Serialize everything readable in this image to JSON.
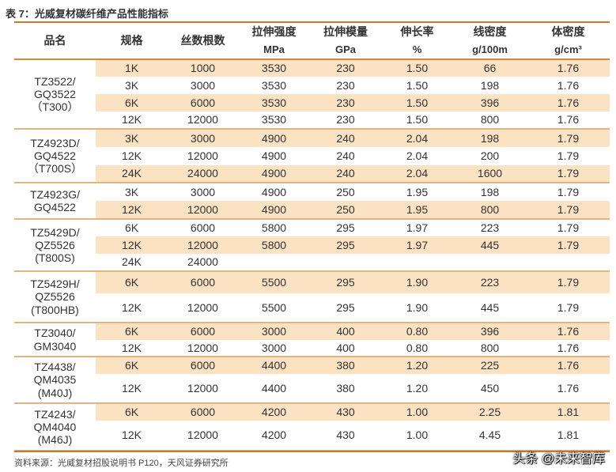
{
  "title": "表 7：光威复材碳纤维产品性能指标",
  "headers": {
    "name": "品名",
    "spec": "规格",
    "filaments": "丝数根数",
    "tensile_strength": "拉伸强度",
    "tensile_modulus": "拉伸模量",
    "elongation": "伸长率",
    "linear_density": "线密度",
    "density": "体密度"
  },
  "units": {
    "tensile_strength": "MPa",
    "tensile_modulus": "GPa",
    "elongation": "%",
    "linear_density": "g/100m",
    "density": "g/cm³"
  },
  "groups": [
    {
      "name": "TZ3522/\nGQ3522\n（T300）",
      "rows": [
        {
          "spec": "1K",
          "filaments": "1000",
          "strength": "3530",
          "modulus": "230",
          "elong": "1.50",
          "lin": "66",
          "dens": "1.76",
          "shade": true
        },
        {
          "spec": "3K",
          "filaments": "3000",
          "strength": "3530",
          "modulus": "230",
          "elong": "1.50",
          "lin": "198",
          "dens": "1.76",
          "shade": false
        },
        {
          "spec": "6K",
          "filaments": "6000",
          "strength": "3530",
          "modulus": "230",
          "elong": "1.50",
          "lin": "396",
          "dens": "1.76",
          "shade": true
        },
        {
          "spec": "12K",
          "filaments": "12000",
          "strength": "3530",
          "modulus": "230",
          "elong": "1.50",
          "lin": "800",
          "dens": "1.76",
          "shade": false
        }
      ]
    },
    {
      "name": "TZ4923D/\nGQ4522\n（T700S）",
      "rows": [
        {
          "spec": "3K",
          "filaments": "3000",
          "strength": "4900",
          "modulus": "240",
          "elong": "2.04",
          "lin": "198",
          "dens": "1.79",
          "shade": true
        },
        {
          "spec": "12K",
          "filaments": "12000",
          "strength": "4900",
          "modulus": "240",
          "elong": "2.04",
          "lin": "200",
          "dens": "1.79",
          "shade": false
        },
        {
          "spec": "24K",
          "filaments": "24000",
          "strength": "4900",
          "modulus": "240",
          "elong": "2.04",
          "lin": "1600",
          "dens": "1.79",
          "shade": true
        }
      ]
    },
    {
      "name": "TZ4923G/\nGQ4522",
      "rows": [
        {
          "spec": "3K",
          "filaments": "3000",
          "strength": "4900",
          "modulus": "250",
          "elong": "1.95",
          "lin": "198",
          "dens": "1.79",
          "shade": false
        },
        {
          "spec": "12K",
          "filaments": "12000",
          "strength": "4900",
          "modulus": "250",
          "elong": "1.95",
          "lin": "800",
          "dens": "1.79",
          "shade": true
        }
      ]
    },
    {
      "name": "TZ5429D/\nQZ5526\n(T800S)",
      "rows": [
        {
          "spec": "6K",
          "filaments": "6000",
          "strength": "5800",
          "modulus": "295",
          "elong": "1.97",
          "lin": "223",
          "dens": "1.79",
          "shade": false
        },
        {
          "spec": "12K",
          "filaments": "12000",
          "strength": "5800",
          "modulus": "295",
          "elong": "1.97",
          "lin": "445",
          "dens": "1.79",
          "shade": true
        },
        {
          "spec": "24K",
          "filaments": "24000",
          "strength": "",
          "modulus": "",
          "elong": "",
          "lin": "",
          "dens": "",
          "shade": false
        }
      ]
    },
    {
      "name": "TZ5429H/\nQZ5526\n(T800HB)",
      "rows": [
        {
          "spec": "6K",
          "filaments": "6000",
          "strength": "5500",
          "modulus": "295",
          "elong": "1.90",
          "lin": "223",
          "dens": "1.79",
          "shade": true
        },
        {
          "spec": "12K",
          "filaments": "12000",
          "strength": "5500",
          "modulus": "295",
          "elong": "1.90",
          "lin": "445",
          "dens": "1.79",
          "shade": false
        }
      ]
    },
    {
      "name": "TZ3040/\nGM3040",
      "rows": [
        {
          "spec": "6K",
          "filaments": "6000",
          "strength": "3000",
          "modulus": "400",
          "elong": "0.80",
          "lin": "396",
          "dens": "1.76",
          "shade": true
        },
        {
          "spec": "12K",
          "filaments": "12000",
          "strength": "3000",
          "modulus": "400",
          "elong": "0.80",
          "lin": "800",
          "dens": "1.76",
          "shade": false
        }
      ]
    },
    {
      "name": "TZ4438/\nQM4035\n(M40J)",
      "rows": [
        {
          "spec": "6K",
          "filaments": "6000",
          "strength": "4400",
          "modulus": "380",
          "elong": "1.20",
          "lin": "225",
          "dens": "1.76",
          "shade": true
        },
        {
          "spec": "12K",
          "filaments": "12000",
          "strength": "4400",
          "modulus": "380",
          "elong": "1.20",
          "lin": "450",
          "dens": "1.76",
          "shade": false
        }
      ]
    },
    {
      "name": "TZ4243/\nQM4040\n(M46J)",
      "rows": [
        {
          "spec": "6K",
          "filaments": "6000",
          "strength": "4200",
          "modulus": "430",
          "elong": "1.00",
          "lin": "2.25",
          "dens": "1.81",
          "shade": true
        },
        {
          "spec": "12K",
          "filaments": "12000",
          "strength": "4200",
          "modulus": "430",
          "elong": "1.00",
          "lin": "4.45",
          "dens": "1.81",
          "shade": false
        }
      ]
    }
  ],
  "source": "资料来源：光威复材招股说明书 P120，天风证券研究所",
  "watermark": "头条 @未来智库",
  "colors": {
    "accent_line": "#c8782a",
    "row_shade": "#fbe2c2",
    "group_divider": "#dfb583"
  }
}
